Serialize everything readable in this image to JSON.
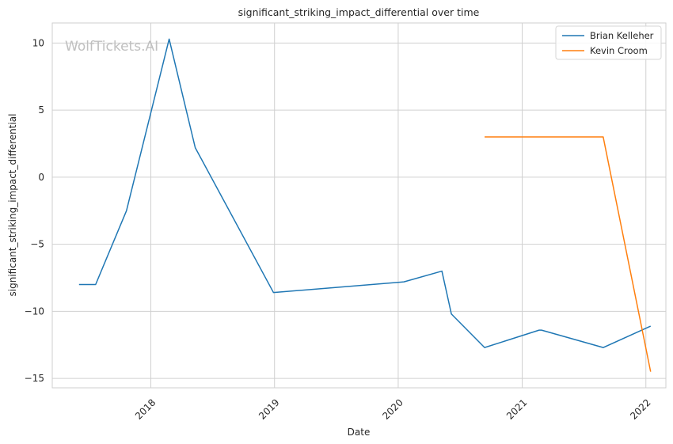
{
  "chart_data": {
    "type": "line",
    "title": "significant_striking_impact_differential over time",
    "xlabel": "Date",
    "ylabel": "significant_striking_impact_differential",
    "watermark": "WolfTickets.AI",
    "x_ticks": [
      "2018",
      "2019",
      "2020",
      "2021",
      "2022"
    ],
    "y_ticks": [
      10,
      5,
      0,
      -5,
      -10,
      -15
    ],
    "xlim": [
      "2017-03-16",
      "2022-03-01"
    ],
    "ylim": [
      -15.7,
      11.5
    ],
    "grid": true,
    "legend_position": "top-right",
    "series": [
      {
        "name": "Brian Kelleher",
        "color": "#1f77b4",
        "points": [
          {
            "x": "2017-06-03",
            "y": -8.0
          },
          {
            "x": "2017-07-22",
            "y": -8.0
          },
          {
            "x": "2017-10-21",
            "y": -2.5
          },
          {
            "x": "2018-02-24",
            "y": 10.3
          },
          {
            "x": "2018-05-12",
            "y": 2.2
          },
          {
            "x": "2018-12-29",
            "y": -8.6
          },
          {
            "x": "2020-01-18",
            "y": -7.8
          },
          {
            "x": "2020-05-09",
            "y": -7.0
          },
          {
            "x": "2020-06-06",
            "y": -10.2
          },
          {
            "x": "2020-09-12",
            "y": -12.7
          },
          {
            "x": "2021-02-20",
            "y": -11.4
          },
          {
            "x": "2021-02-27",
            "y": -11.4
          },
          {
            "x": "2021-08-28",
            "y": -12.7
          },
          {
            "x": "2022-01-15",
            "y": -11.1
          }
        ]
      },
      {
        "name": "Kevin Croom",
        "color": "#ff7f0e",
        "points": [
          {
            "x": "2020-09-12",
            "y": 3.0
          },
          {
            "x": "2021-08-28",
            "y": 3.0
          },
          {
            "x": "2022-01-15",
            "y": -14.5
          }
        ]
      }
    ]
  }
}
